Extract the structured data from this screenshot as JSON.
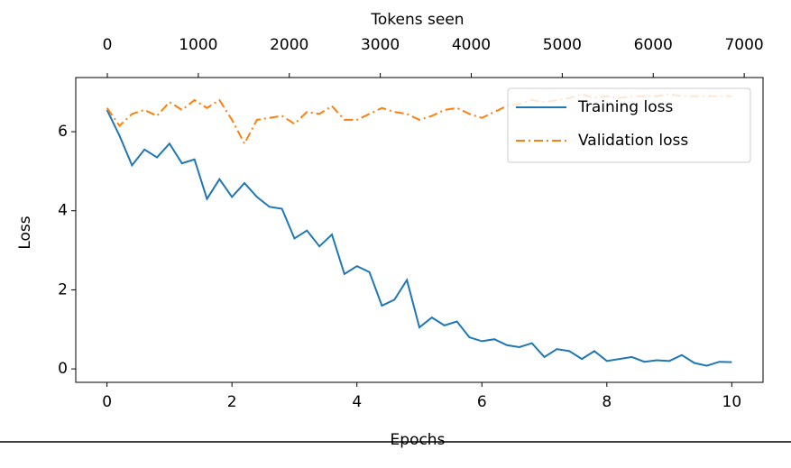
{
  "chart_data": {
    "type": "line",
    "xlabel": "Epochs",
    "ylabel": "Loss",
    "x2label": "Tokens seen",
    "x": [
      0,
      0.2,
      0.4,
      0.6,
      0.8,
      1.0,
      1.2,
      1.4,
      1.6,
      1.8,
      2.0,
      2.2,
      2.4,
      2.6,
      2.8,
      3.0,
      3.2,
      3.4,
      3.6,
      3.8,
      4.0,
      4.2,
      4.4,
      4.6,
      4.8,
      5.0,
      5.2,
      5.4,
      5.6,
      5.8,
      6.0,
      6.2,
      6.4,
      6.6,
      6.8,
      7.0,
      7.2,
      7.4,
      7.6,
      7.8,
      8.0,
      8.2,
      8.4,
      8.6,
      8.8,
      9.0,
      9.2,
      9.4,
      9.6,
      9.8,
      10.0
    ],
    "series": [
      {
        "name": "Training loss",
        "color": "#1f77b4",
        "linestyle": "solid",
        "values": [
          6.55,
          5.9,
          5.15,
          5.55,
          5.35,
          5.7,
          5.2,
          5.3,
          4.3,
          4.8,
          4.35,
          4.7,
          4.35,
          4.1,
          4.05,
          3.3,
          3.5,
          3.1,
          3.4,
          2.4,
          2.6,
          2.45,
          1.6,
          1.75,
          2.25,
          1.05,
          1.3,
          1.1,
          1.2,
          0.8,
          0.7,
          0.75,
          0.6,
          0.55,
          0.65,
          0.3,
          0.5,
          0.45,
          0.25,
          0.45,
          0.2,
          0.25,
          0.3,
          0.18,
          0.22,
          0.2,
          0.35,
          0.15,
          0.08,
          0.18,
          0.17
        ]
      },
      {
        "name": "Validation loss",
        "color": "#ff7f0e",
        "linestyle": "dashdot",
        "values": [
          6.6,
          6.15,
          6.45,
          6.55,
          6.4,
          6.75,
          6.55,
          6.8,
          6.6,
          6.8,
          6.3,
          5.7,
          6.3,
          6.35,
          6.4,
          6.2,
          6.5,
          6.45,
          6.65,
          6.3,
          6.3,
          6.45,
          6.6,
          6.5,
          6.45,
          6.3,
          6.4,
          6.55,
          6.6,
          6.45,
          6.35,
          6.5,
          6.65,
          6.7,
          6.8,
          6.75,
          6.8,
          6.85,
          6.95,
          6.85,
          6.9,
          6.85,
          6.9,
          6.9,
          6.9,
          6.95,
          6.9,
          6.9,
          6.9,
          6.9,
          6.9
        ]
      }
    ],
    "xlim": [
      -0.5,
      10.5
    ],
    "xticks": [
      0,
      2,
      4,
      6,
      8,
      10
    ],
    "ylim": [
      -0.34,
      7.37
    ],
    "yticks": [
      0,
      2,
      4,
      6
    ],
    "x2lim": [
      -347,
      7207
    ],
    "x2ticks": [
      0,
      1000,
      2000,
      3000,
      4000,
      5000,
      6000,
      7000
    ],
    "legend": "upper right",
    "grid": false
  }
}
